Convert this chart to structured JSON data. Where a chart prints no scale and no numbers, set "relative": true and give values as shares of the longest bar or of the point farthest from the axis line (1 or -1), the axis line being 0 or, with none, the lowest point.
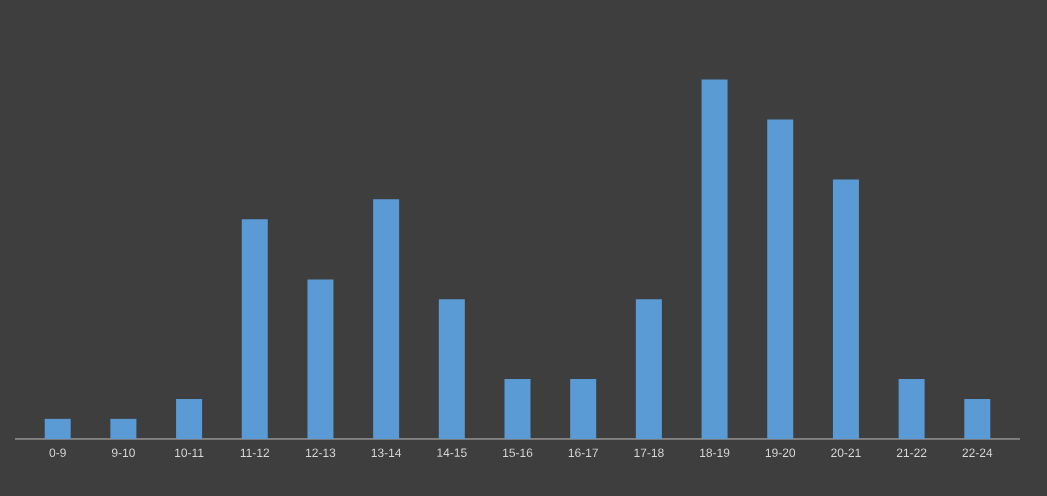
{
  "chart_data": {
    "type": "bar",
    "relative": true,
    "color": "#5b9bd5",
    "categories": [
      "0-9",
      "9-10",
      "10-11",
      "11-12",
      "12-13",
      "13-14",
      "14-15",
      "15-16",
      "16-17",
      "17-18",
      "18-19",
      "19-20",
      "20-21",
      "21-22",
      "22-24"
    ],
    "values": [
      0.056,
      0.056,
      0.111,
      0.611,
      0.444,
      0.667,
      0.389,
      0.167,
      0.167,
      0.389,
      1,
      0.889,
      0.722,
      0.167,
      0.111
    ]
  }
}
